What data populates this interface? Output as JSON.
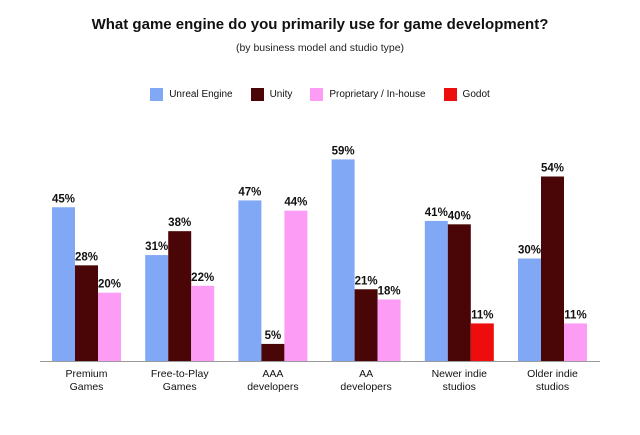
{
  "chart_data": {
    "type": "bar",
    "title": "What game engine do you primarily use for game development?",
    "subtitle": "(by business model and studio type)",
    "categories": [
      [
        "Premium",
        "Games"
      ],
      [
        "Free-to-Play",
        "Games"
      ],
      [
        "AAA",
        "developers"
      ],
      [
        "AA",
        "developers"
      ],
      [
        "Newer indie",
        "studios"
      ],
      [
        "Older indie",
        "studios"
      ]
    ],
    "series": [
      {
        "name": "Unreal Engine",
        "color": "#80a8f5",
        "values": [
          45,
          31,
          47,
          59,
          41,
          30
        ]
      },
      {
        "name": "Unity",
        "color": "#4a0606",
        "values": [
          28,
          38,
          5,
          21,
          40,
          54
        ]
      },
      {
        "name": "Proprietary / In-house",
        "color": "#fc9cf5",
        "values": [
          20,
          22,
          44,
          18,
          null,
          11
        ]
      },
      {
        "name": "Godot",
        "color": "#ee0d0d",
        "values": [
          null,
          null,
          null,
          null,
          11,
          null
        ]
      }
    ],
    "value_suffix": "%",
    "ylim": [
      0,
      60
    ],
    "xlabel": "",
    "ylabel": "",
    "grid": false,
    "legend_position": "top-center"
  }
}
